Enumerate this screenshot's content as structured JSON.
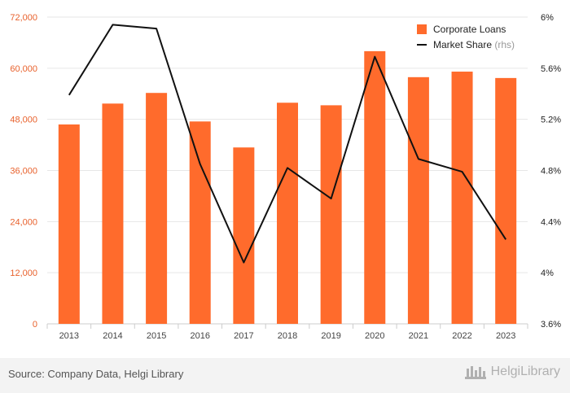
{
  "chart_data": {
    "type": "bar+line",
    "categories": [
      "2013",
      "2014",
      "2015",
      "2016",
      "2017",
      "2018",
      "2019",
      "2020",
      "2021",
      "2022",
      "2023"
    ],
    "series": [
      {
        "name": "Corporate Loans",
        "type": "bar",
        "axis": "left",
        "color": "#ff6b2c",
        "values": [
          46800,
          51700,
          54200,
          47500,
          41400,
          51900,
          51300,
          64000,
          57900,
          59200,
          57700
        ]
      },
      {
        "name": "Market Share",
        "name_suffix": "(rhs)",
        "type": "line",
        "axis": "right",
        "color": "#111111",
        "values": [
          5.39,
          5.94,
          5.91,
          4.85,
          4.08,
          4.82,
          4.58,
          5.69,
          4.89,
          4.79,
          4.26
        ]
      }
    ],
    "y_left": {
      "ticks": [
        "0",
        "12,000",
        "24,000",
        "36,000",
        "48,000",
        "60,000",
        "72,000"
      ],
      "ylim": [
        0,
        72000
      ]
    },
    "y_right": {
      "ticks": [
        "3.6%",
        "4%",
        "4.4%",
        "4.8%",
        "5.2%",
        "5.6%",
        "6%"
      ],
      "ylim": [
        3.6,
        6.0
      ]
    },
    "grid": true,
    "legend_position": "top-right"
  },
  "footer": {
    "source": "Source: Company Data, Helgi Library",
    "logo_text": "HelgiLibrary"
  }
}
